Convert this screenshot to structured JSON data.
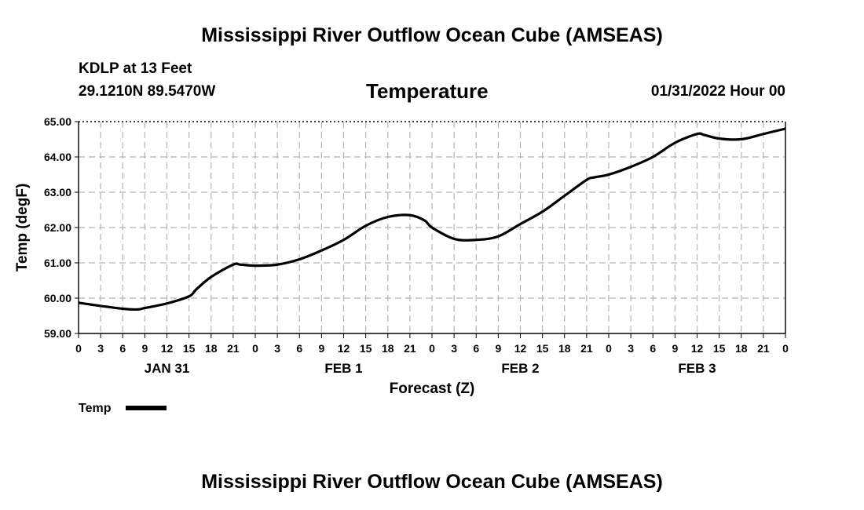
{
  "header": {
    "title_top": "Mississippi River Outflow Ocean Cube (AMSEAS)",
    "station": "KDLP at 13 Feet",
    "coords": "29.1210N  89.5470W",
    "variable": "Temperature",
    "datetime": "01/31/2022 Hour 00",
    "title_bottom": "Mississippi River Outflow Ocean Cube (AMSEAS)"
  },
  "chart_data": {
    "type": "line",
    "title": "Temperature",
    "xlabel": "Forecast (Z)",
    "ylabel": "Temp (degF)",
    "xlim": [
      0,
      96
    ],
    "ylim": [
      59.0,
      65.0
    ],
    "y_ticks": [
      "59.00",
      "60.00",
      "61.00",
      "62.00",
      "63.00",
      "64.00",
      "65.00"
    ],
    "x_tick_labels": [
      "0",
      "3",
      "6",
      "9",
      "12",
      "15",
      "18",
      "21",
      "0",
      "3",
      "6",
      "9",
      "12",
      "15",
      "18",
      "21",
      "0",
      "3",
      "6",
      "9",
      "12",
      "15",
      "18",
      "21",
      "0",
      "3",
      "6",
      "9",
      "12",
      "15",
      "18",
      "21",
      "0"
    ],
    "day_labels": [
      {
        "label": "JAN 31",
        "hour": 12
      },
      {
        "label": "FEB 1",
        "hour": 36
      },
      {
        "label": "FEB 2",
        "hour": 60
      },
      {
        "label": "FEB 3",
        "hour": 84
      }
    ],
    "grid": true,
    "legend": {
      "position": "bottom-left",
      "entries": [
        "Temp"
      ]
    },
    "series": [
      {
        "name": "Temp",
        "color": "#000000",
        "x": [
          0,
          3,
          6,
          8,
          9,
          12,
          15,
          16,
          18,
          21,
          22,
          24,
          27,
          30,
          33,
          36,
          39,
          42,
          45,
          47,
          48,
          51,
          54,
          57,
          60,
          63,
          66,
          69,
          70,
          72,
          75,
          78,
          81,
          84,
          85,
          87,
          90,
          93,
          96
        ],
        "values": [
          59.87,
          59.78,
          59.7,
          59.68,
          59.72,
          59.85,
          60.05,
          60.25,
          60.6,
          60.95,
          60.95,
          60.92,
          60.95,
          61.1,
          61.35,
          61.65,
          62.05,
          62.3,
          62.35,
          62.2,
          62.0,
          61.68,
          61.65,
          61.75,
          62.1,
          62.45,
          62.9,
          63.35,
          63.42,
          63.5,
          63.72,
          64.0,
          64.4,
          64.65,
          64.62,
          64.52,
          64.5,
          64.65,
          64.8
        ]
      }
    ]
  }
}
